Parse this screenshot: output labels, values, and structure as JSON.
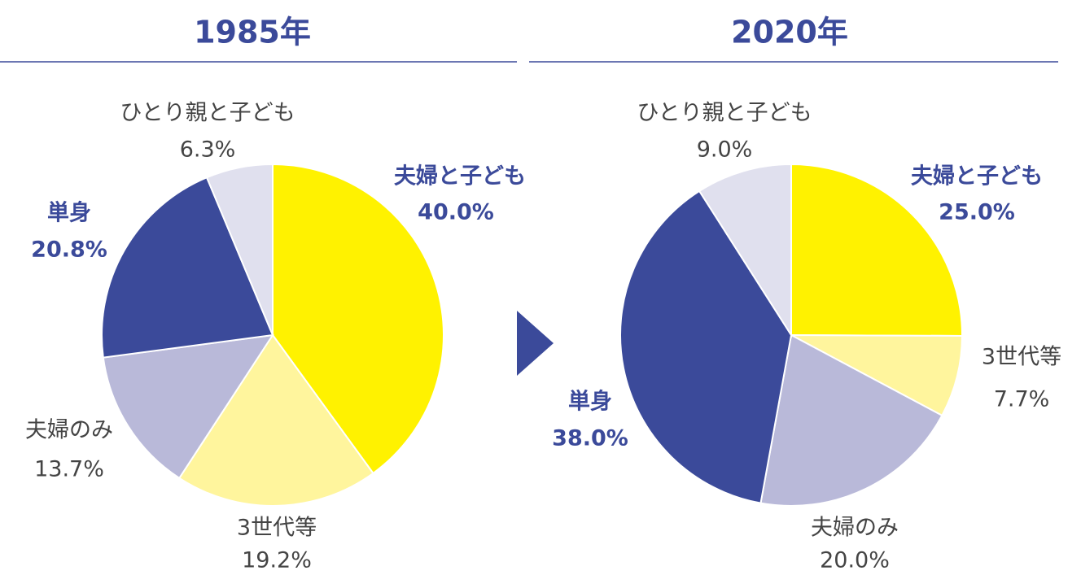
{
  "chart_data": [
    {
      "type": "pie",
      "title": "1985年",
      "categories": [
        "夫婦と子ども",
        "3世代等",
        "夫婦のみ",
        "単身",
        "ひとり親と子ども"
      ],
      "values": [
        40.0,
        19.2,
        13.7,
        20.8,
        6.3
      ],
      "value_labels": [
        "40.0%",
        "19.2%",
        "13.7%",
        "20.8%",
        "6.3%"
      ],
      "colors": [
        "#fff200",
        "#fff59d",
        "#b9b9d9",
        "#3b4a9a",
        "#e0e0ee"
      ],
      "label_colors": [
        "#3b4a9a",
        "#444444",
        "#444444",
        "#3b4a9a",
        "#444444"
      ]
    },
    {
      "type": "pie",
      "title": "2020年",
      "categories": [
        "夫婦と子ども",
        "3世代等",
        "夫婦のみ",
        "単身",
        "ひとり親と子ども"
      ],
      "values": [
        25.0,
        7.7,
        20.0,
        38.0,
        9.0
      ],
      "value_labels": [
        "25.0%",
        "7.7%",
        "20.0%",
        "38.0%",
        "9.0%"
      ],
      "colors": [
        "#fff200",
        "#fff59d",
        "#b9b9d9",
        "#3b4a9a",
        "#e0e0ee"
      ],
      "label_colors": [
        "#3b4a9a",
        "#444444",
        "#444444",
        "#3b4a9a",
        "#444444"
      ]
    }
  ]
}
